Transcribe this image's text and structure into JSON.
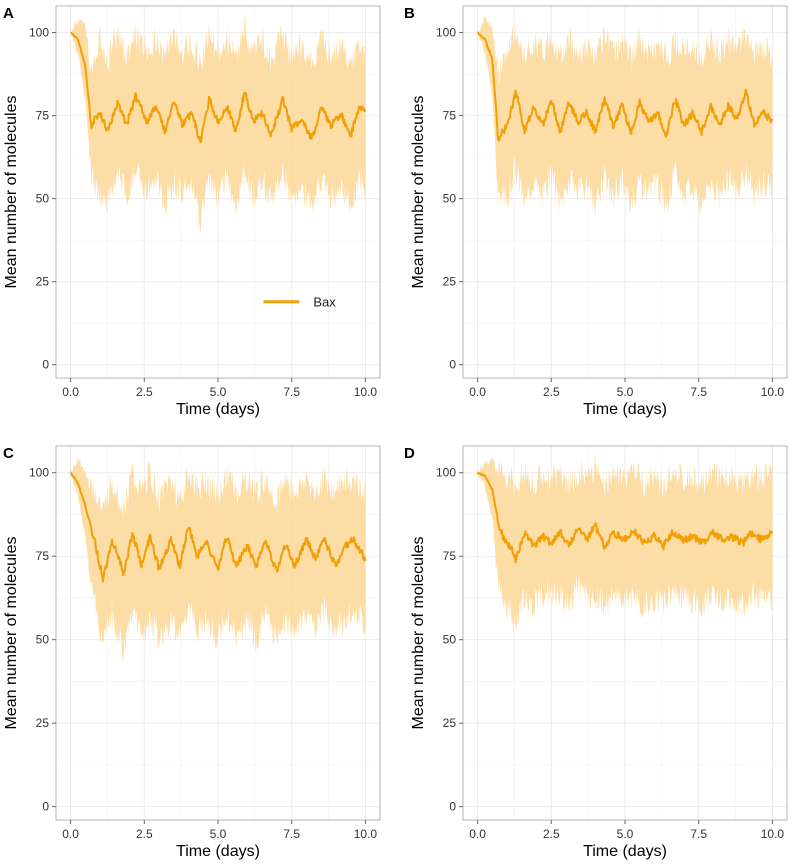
{
  "colors": {
    "line": "#f29f05",
    "band": "#fdd796",
    "grid_major": "#ebebeb",
    "grid_minor": "#f6f6f6",
    "frame": "#b3b3b3"
  },
  "chart_data": [
    {
      "panel": "A",
      "type": "line",
      "xlabel": "Time (days)",
      "ylabel": "Mean number of molecules",
      "xlim": [
        0,
        10
      ],
      "ylim": [
        -4,
        108
      ],
      "xticks": [
        0,
        2.5,
        5,
        7.5,
        10
      ],
      "xtick_labels": [
        "0.0",
        "2.5",
        "5.0",
        "7.5",
        "10.0"
      ],
      "yticks": [
        0,
        25,
        50,
        75,
        100
      ],
      "ytick_labels": [
        "0",
        "25",
        "50",
        "75",
        "100"
      ],
      "legend": {
        "label": "Bax",
        "position": "bottom-right"
      },
      "series": [
        {
          "name": "Bax",
          "x": [
            0,
            0.25,
            0.5,
            0.7,
            1.0,
            1.25,
            1.6,
            1.9,
            2.2,
            2.6,
            2.9,
            3.2,
            3.5,
            3.8,
            4.1,
            4.4,
            4.7,
            5.0,
            5.3,
            5.6,
            5.9,
            6.2,
            6.5,
            6.8,
            7.2,
            7.5,
            7.8,
            8.2,
            8.5,
            8.8,
            9.2,
            9.5,
            9.8,
            10.0
          ],
          "mean": [
            100,
            98,
            90,
            72,
            76,
            70,
            79,
            72,
            81,
            73,
            78,
            70,
            79,
            72,
            76,
            67,
            80,
            73,
            78,
            70,
            82,
            73,
            76,
            69,
            80,
            71,
            74,
            68,
            78,
            72,
            75,
            69,
            78,
            76
          ],
          "lower": [
            100,
            94,
            80,
            58,
            50,
            48,
            60,
            50,
            58,
            52,
            56,
            48,
            56,
            50,
            56,
            43,
            56,
            50,
            56,
            48,
            58,
            50,
            56,
            49,
            58,
            50,
            54,
            48,
            56,
            50,
            52,
            48,
            56,
            53
          ],
          "upper": [
            100,
            104,
            102,
            90,
            98,
            92,
            100,
            92,
            100,
            94,
            98,
            92,
            100,
            94,
            98,
            90,
            100,
            94,
            98,
            92,
            102,
            94,
            98,
            90,
            100,
            92,
            96,
            90,
            98,
            94,
            96,
            90,
            98,
            95
          ]
        }
      ]
    },
    {
      "panel": "B",
      "type": "line",
      "xlabel": "Time (days)",
      "ylabel": "Mean number of molecules",
      "xlim": [
        0,
        10
      ],
      "ylim": [
        -4,
        108
      ],
      "xticks": [
        0,
        2.5,
        5,
        7.5,
        10
      ],
      "xtick_labels": [
        "0.0",
        "2.5",
        "5.0",
        "7.5",
        "10.0"
      ],
      "yticks": [
        0,
        25,
        50,
        75,
        100
      ],
      "ytick_labels": [
        "0",
        "25",
        "50",
        "75",
        "100"
      ],
      "series": [
        {
          "name": "Bax",
          "x": [
            0,
            0.25,
            0.5,
            0.7,
            1.0,
            1.3,
            1.6,
            1.9,
            2.2,
            2.5,
            2.8,
            3.1,
            3.4,
            3.7,
            4.0,
            4.3,
            4.6,
            4.9,
            5.2,
            5.5,
            5.8,
            6.1,
            6.4,
            6.7,
            7.0,
            7.3,
            7.6,
            7.9,
            8.2,
            8.5,
            8.8,
            9.1,
            9.4,
            9.7,
            10.0
          ],
          "mean": [
            100,
            98,
            92,
            68,
            72,
            82,
            70,
            78,
            72,
            80,
            70,
            79,
            73,
            76,
            70,
            80,
            72,
            78,
            70,
            79,
            73,
            76,
            69,
            80,
            72,
            76,
            70,
            78,
            72,
            78,
            74,
            82,
            72,
            76,
            73
          ],
          "lower": [
            100,
            94,
            82,
            50,
            50,
            60,
            48,
            56,
            50,
            58,
            48,
            56,
            52,
            54,
            48,
            56,
            50,
            56,
            48,
            56,
            52,
            54,
            48,
            58,
            50,
            54,
            48,
            56,
            50,
            56,
            52,
            58,
            50,
            55,
            53
          ],
          "upper": [
            100,
            104,
            102,
            88,
            94,
            100,
            92,
            98,
            94,
            100,
            92,
            98,
            94,
            96,
            92,
            98,
            94,
            98,
            92,
            98,
            94,
            96,
            92,
            98,
            94,
            96,
            92,
            98,
            94,
            98,
            94,
            100,
            94,
            96,
            93
          ]
        }
      ]
    },
    {
      "panel": "C",
      "type": "line",
      "xlabel": "Time (days)",
      "ylabel": "Mean number of molecules",
      "xlim": [
        0,
        10
      ],
      "ylim": [
        -4,
        108
      ],
      "xticks": [
        0,
        2.5,
        5,
        7.5,
        10
      ],
      "xtick_labels": [
        "0.0",
        "2.5",
        "5.0",
        "7.5",
        "10.0"
      ],
      "yticks": [
        0,
        25,
        50,
        75,
        100
      ],
      "ytick_labels": [
        "0",
        "25",
        "50",
        "75",
        "100"
      ],
      "series": [
        {
          "name": "Bax",
          "x": [
            0,
            0.25,
            0.5,
            0.8,
            1.1,
            1.4,
            1.8,
            2.1,
            2.4,
            2.7,
            3.0,
            3.4,
            3.7,
            4.0,
            4.3,
            4.6,
            5.0,
            5.3,
            5.6,
            6.0,
            6.3,
            6.6,
            7.0,
            7.3,
            7.6,
            8.0,
            8.3,
            8.6,
            9.0,
            9.3,
            9.6,
            10.0
          ],
          "mean": [
            100,
            97,
            90,
            80,
            68,
            80,
            70,
            82,
            72,
            81,
            71,
            80,
            72,
            84,
            75,
            79,
            71,
            81,
            72,
            78,
            72,
            80,
            70,
            79,
            72,
            80,
            74,
            80,
            72,
            78,
            80,
            74
          ],
          "lower": [
            100,
            93,
            80,
            62,
            48,
            58,
            46,
            60,
            50,
            58,
            50,
            56,
            50,
            60,
            52,
            56,
            50,
            58,
            50,
            56,
            50,
            58,
            50,
            56,
            52,
            58,
            52,
            58,
            52,
            56,
            58,
            55
          ],
          "upper": [
            100,
            104,
            100,
            96,
            88,
            98,
            90,
            100,
            94,
            100,
            92,
            98,
            92,
            100,
            95,
            98,
            92,
            100,
            94,
            98,
            94,
            98,
            92,
            98,
            94,
            98,
            94,
            98,
            94,
            98,
            98,
            94
          ]
        }
      ]
    },
    {
      "panel": "D",
      "type": "line",
      "xlabel": "Time (days)",
      "ylabel": "Mean number of molecules",
      "xlim": [
        0,
        10
      ],
      "ylim": [
        -4,
        108
      ],
      "xticks": [
        0,
        2.5,
        5,
        7.5,
        10
      ],
      "xtick_labels": [
        "0.0",
        "2.5",
        "5.0",
        "7.5",
        "10.0"
      ],
      "yticks": [
        0,
        25,
        50,
        75,
        100
      ],
      "ytick_labels": [
        "0",
        "25",
        "50",
        "75",
        "100"
      ],
      "series": [
        {
          "name": "Bax",
          "x": [
            0,
            0.25,
            0.5,
            0.7,
            0.9,
            1.1,
            1.3,
            1.6,
            1.9,
            2.2,
            2.5,
            2.8,
            3.1,
            3.4,
            3.7,
            4.0,
            4.3,
            4.6,
            5.0,
            5.3,
            5.6,
            6.0,
            6.3,
            6.6,
            7.0,
            7.3,
            7.6,
            8.0,
            8.3,
            8.6,
            9.0,
            9.3,
            9.6,
            10.0
          ],
          "mean": [
            100,
            99,
            95,
            85,
            80,
            78,
            74,
            82,
            78,
            81,
            79,
            82,
            78,
            83,
            80,
            84,
            78,
            82,
            80,
            83,
            79,
            81,
            78,
            82,
            80,
            81,
            79,
            82,
            80,
            81,
            79,
            82,
            80,
            82
          ],
          "lower": [
            100,
            96,
            86,
            68,
            60,
            58,
            52,
            64,
            60,
            64,
            62,
            64,
            60,
            66,
            62,
            64,
            60,
            64,
            62,
            64,
            60,
            62,
            60,
            64,
            62,
            62,
            60,
            64,
            62,
            62,
            60,
            64,
            62,
            63
          ],
          "upper": [
            100,
            103,
            104,
            100,
            98,
            98,
            96,
            100,
            96,
            100,
            98,
            100,
            96,
            100,
            98,
            102,
            96,
            100,
            98,
            100,
            97,
            99,
            96,
            100,
            98,
            99,
            97,
            100,
            98,
            99,
            97,
            100,
            98,
            100
          ]
        }
      ]
    }
  ]
}
